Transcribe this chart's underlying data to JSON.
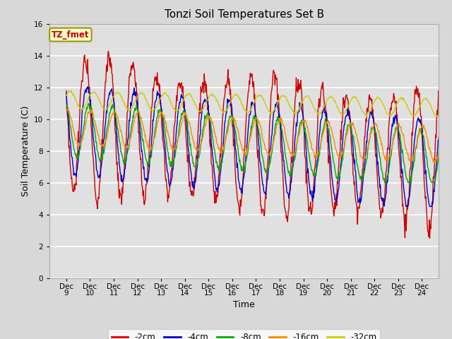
{
  "title": "Tonzi Soil Temperatures Set B",
  "xlabel": "Time",
  "ylabel": "Soil Temperature (C)",
  "ylim": [
    0,
    16
  ],
  "yticks": [
    0,
    2,
    4,
    6,
    8,
    10,
    12,
    14,
    16
  ],
  "xtick_positions": [
    9,
    10,
    11,
    12,
    13,
    14,
    15,
    16,
    17,
    18,
    19,
    20,
    21,
    22,
    23,
    24
  ],
  "xtick_labels": [
    "Dec\n9",
    "Dec\n10",
    "Dec\n11",
    "Dec\n12",
    "Dec\n13",
    "Dec\n14",
    "Dec\n15",
    "Dec\n16",
    "Dec\n17",
    "Dec\n18",
    "Dec\n19",
    "Dec\n20",
    "Dec\n21",
    "Dec\n22",
    "Dec\n23",
    "Dec\n24"
  ],
  "series_colors": [
    "#cc0000",
    "#0000cc",
    "#00aa00",
    "#ff8800",
    "#cccc00"
  ],
  "series_labels": [
    "-2cm",
    "-4cm",
    "-8cm",
    "-16cm",
    "-32cm"
  ],
  "annotation_text": "TZ_fmet",
  "annotation_color": "#cc0000",
  "annotation_bg": "#ffffcc",
  "fig_facecolor": "#d8d8d8",
  "plot_bg": "#e0e0e0",
  "title_fontsize": 11,
  "axis_fontsize": 9,
  "tick_fontsize": 7.5
}
